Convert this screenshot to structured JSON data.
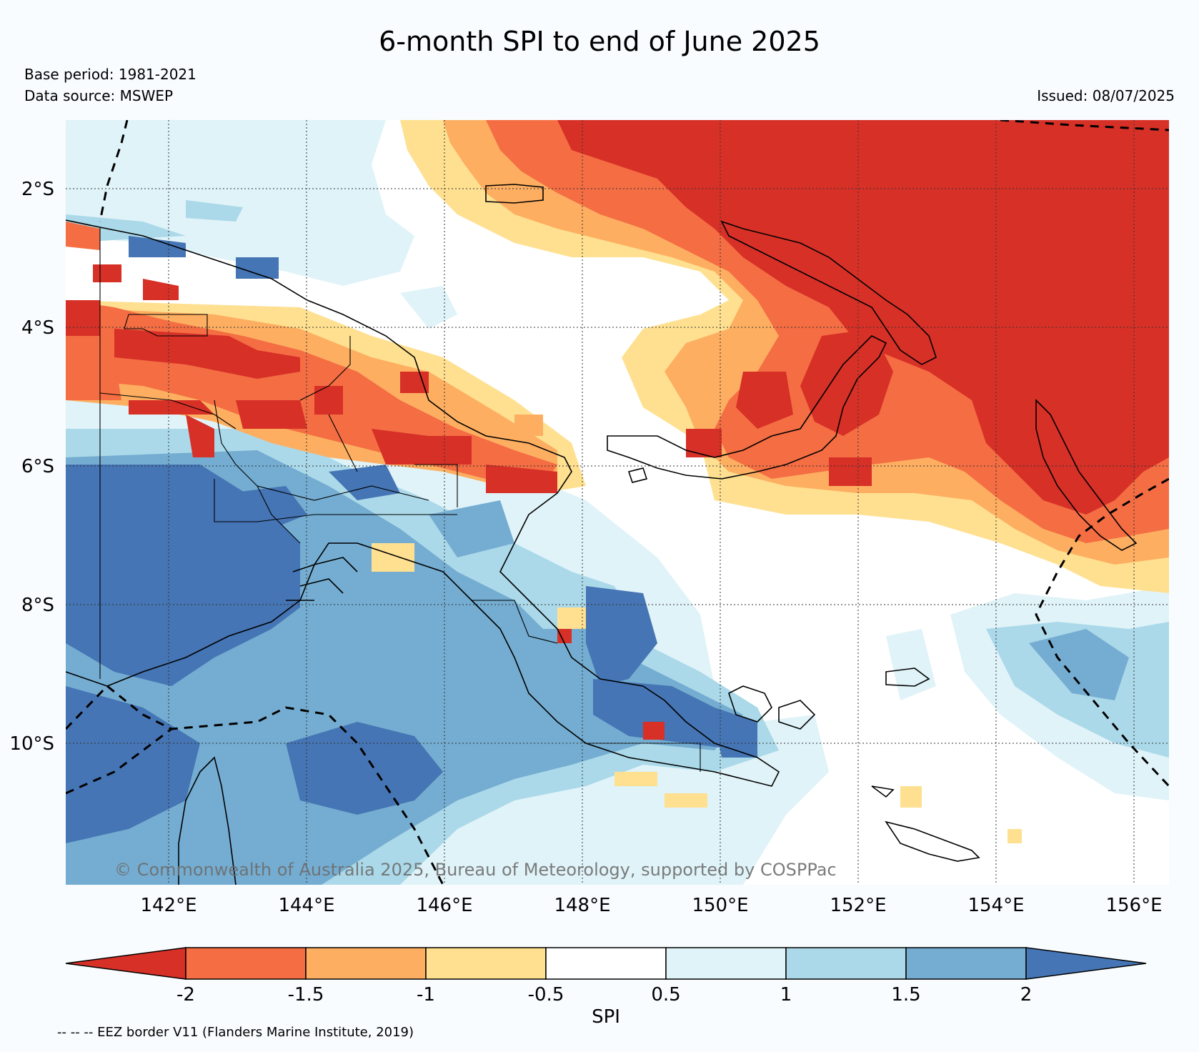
{
  "title": "6-month SPI to end of June 2025",
  "base_period": "Base period: 1981-2021",
  "data_source": "Data source: MSWEP",
  "issued": "Issued: 08/07/2025",
  "watermark": "© Commonwealth of Australia 2025, Bureau of Meteorology, supported by COSPPac",
  "map": {
    "lon_range": [
      140.5,
      156.5
    ],
    "lat_range": [
      -12.2,
      -1.1
    ],
    "lon_ticks": [
      "142°E",
      "144°E",
      "146°E",
      "148°E",
      "150°E",
      "152°E",
      "154°E",
      "156°E"
    ],
    "lat_ticks": [
      "2°S",
      "4°S",
      "6°S",
      "8°S",
      "10°S"
    ]
  },
  "colorbar": {
    "label": "SPI",
    "tick_labels": [
      "-2",
      "-1.5",
      "-1",
      "-0.5",
      "0.5",
      "1",
      "1.5",
      "2"
    ],
    "colors": [
      "#d73027",
      "#f46d43",
      "#fdae61",
      "#fee090",
      "#ffffff",
      "#e0f3f8",
      "#abd9e9",
      "#74add1",
      "#4575b4"
    ]
  },
  "eez_note": "-- -- -- EEZ border V11 (Flanders Marine Institute, 2019)"
}
